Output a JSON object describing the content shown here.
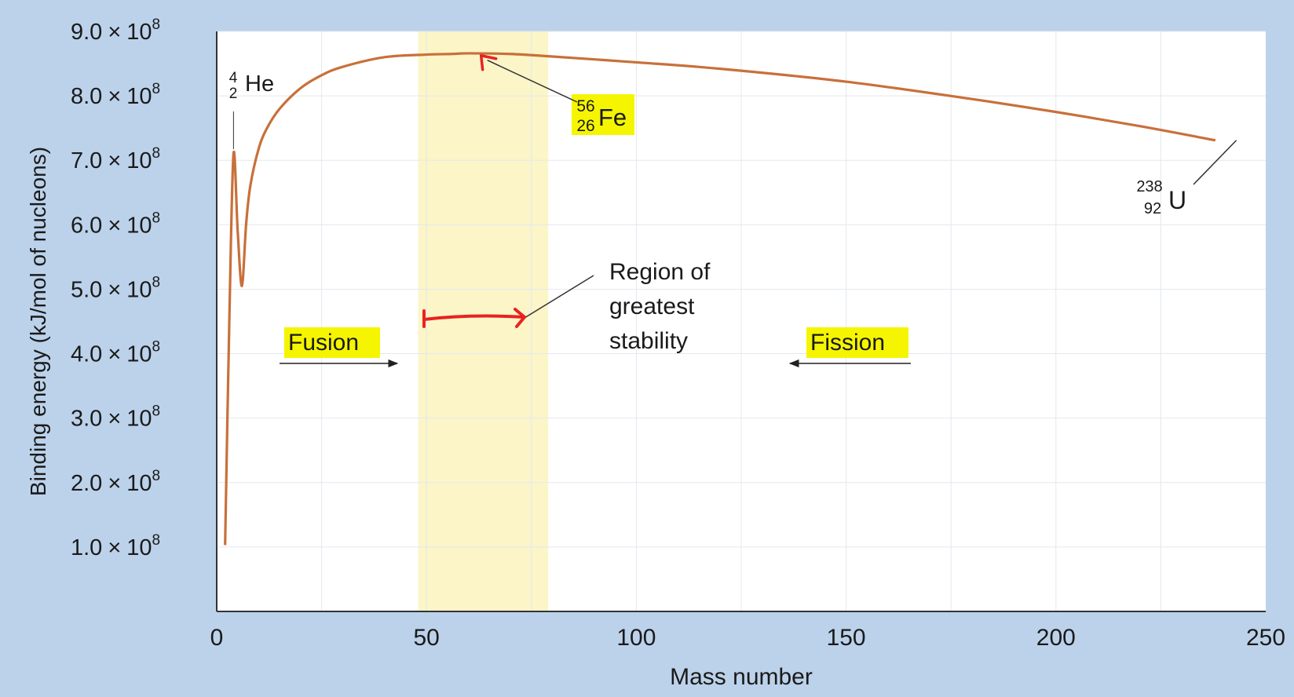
{
  "chart_data": {
    "type": "line",
    "xlabel": "Mass number",
    "ylabel": "Binding energy (kJ/mol of nucleons)",
    "xlim": [
      0,
      250
    ],
    "ylim": [
      0,
      900000000
    ],
    "xticks": [
      0,
      50,
      100,
      150,
      200,
      250
    ],
    "yticks": [
      {
        "value": 100000000,
        "mantissa": "1.0",
        "exp": "8"
      },
      {
        "value": 200000000,
        "mantissa": "2.0",
        "exp": "8"
      },
      {
        "value": 300000000,
        "mantissa": "3.0",
        "exp": "8"
      },
      {
        "value": 400000000,
        "mantissa": "4.0",
        "exp": "8"
      },
      {
        "value": 500000000,
        "mantissa": "5.0",
        "exp": "8"
      },
      {
        "value": 600000000,
        "mantissa": "6.0",
        "exp": "8"
      },
      {
        "value": 700000000,
        "mantissa": "7.0",
        "exp": "8"
      },
      {
        "value": 800000000,
        "mantissa": "8.0",
        "exp": "8"
      },
      {
        "value": 900000000,
        "mantissa": "9.0",
        "exp": "8"
      }
    ],
    "times_sign": "×",
    "tick_base": "10",
    "grid": true,
    "colors": {
      "curve": "#c8703a",
      "stability_band": "#fbf5c8",
      "highlight": "#f5f500",
      "red_marker": "#e8231f",
      "panel_background": "#bcd2ea",
      "plot_background": "#ffffff"
    },
    "series": [
      {
        "x": [
          2,
          3,
          4,
          5,
          6,
          7,
          8,
          10,
          12,
          15,
          20,
          25,
          30,
          40,
          50,
          56,
          60,
          70,
          80,
          100,
          120,
          150,
          180,
          200,
          220,
          238
        ],
        "y": [
          103000000,
          450000000,
          710000000,
          590000000,
          505000000,
          600000000,
          660000000,
          718000000,
          750000000,
          780000000,
          812000000,
          832000000,
          845000000,
          860000000,
          864000000,
          865000000,
          866000000,
          865000000,
          861000000,
          852000000,
          842000000,
          822000000,
          795000000,
          775000000,
          753000000,
          731000000
        ]
      }
    ],
    "stability_region": {
      "x_start": 48,
      "x_end": 79
    },
    "annotations": {
      "helium": {
        "mass": "4",
        "atomic": "2",
        "symbol": "He",
        "x": 4,
        "y": 710000000
      },
      "iron": {
        "mass": "56",
        "atomic": "26",
        "symbol": "Fe",
        "x": 63,
        "y": 865000000
      },
      "uranium": {
        "mass": "238",
        "atomic": "92",
        "symbol": "U",
        "x": 243,
        "y": 731000000
      },
      "stability_label": [
        "Region of",
        "greatest",
        "stability"
      ],
      "fusion_label": "Fusion",
      "fission_label": "Fission"
    }
  }
}
